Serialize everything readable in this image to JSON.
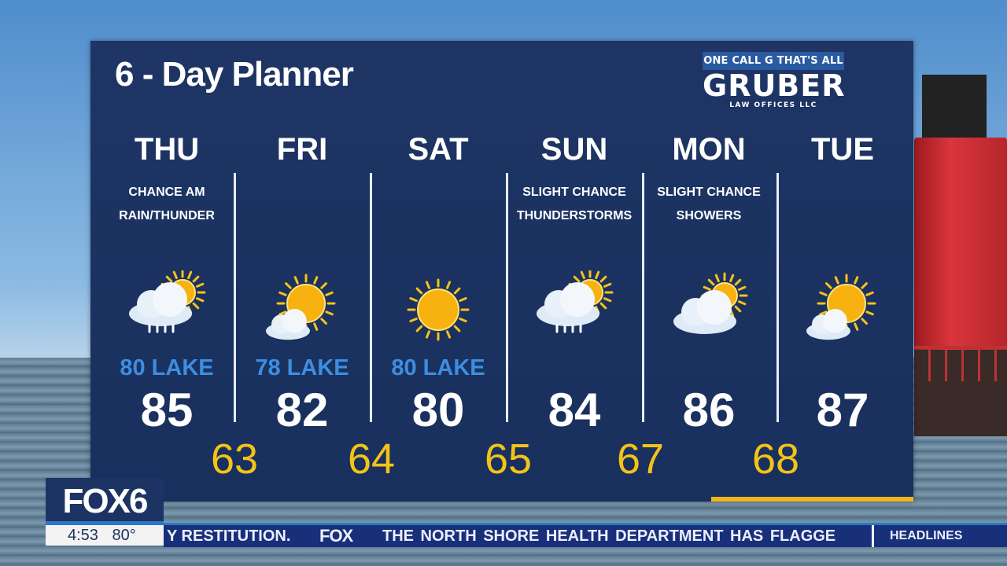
{
  "title": "6 - Day Planner",
  "sponsor": {
    "tagline": "ONE CALL G THAT'S ALL",
    "name": "GRUBER",
    "sub": "LAW OFFICES LLC"
  },
  "days": [
    {
      "day": "THU",
      "desc": [
        "CHANCE AM",
        "RAIN/THUNDER"
      ],
      "icon": "rain-sun",
      "lake": "80 LAKE",
      "high": "85"
    },
    {
      "day": "FRI",
      "desc": [
        "",
        ""
      ],
      "icon": "sun-cloud",
      "lake": "78 LAKE",
      "high": "82"
    },
    {
      "day": "SAT",
      "desc": [
        "",
        ""
      ],
      "icon": "sun",
      "lake": "80 LAKE",
      "high": "80"
    },
    {
      "day": "SUN",
      "desc": [
        "SLIGHT CHANCE",
        "THUNDERSTORMS"
      ],
      "icon": "rain-sun",
      "lake": "",
      "high": "84"
    },
    {
      "day": "MON",
      "desc": [
        "SLIGHT CHANCE",
        "SHOWERS"
      ],
      "icon": "cloud-sun",
      "lake": "",
      "high": "86"
    },
    {
      "day": "TUE",
      "desc": [
        "",
        ""
      ],
      "icon": "sun-cloud",
      "lake": "",
      "high": "87"
    }
  ],
  "lows": [
    "63",
    "64",
    "65",
    "67",
    "68"
  ],
  "colors": {
    "panel": "#1e3565",
    "lake": "#3d8ee0",
    "low": "#f3c417",
    "accent": "#f0b51c"
  },
  "station": {
    "logo": "FOX6",
    "time": "4:53",
    "temp": "80°"
  },
  "ticker": {
    "text1": "Y RESTITUTION.",
    "brand": "FOX",
    "text2": "THE NORTH SHORE HEALTH DEPARTMENT HAS FLAGGE",
    "section": "HEADLINES"
  }
}
